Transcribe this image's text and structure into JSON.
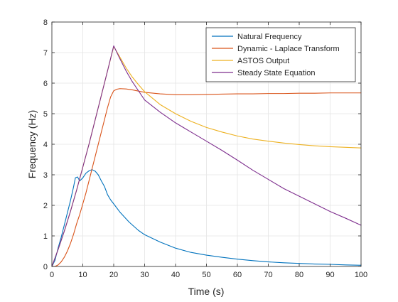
{
  "chart_data": {
    "type": "line",
    "xlabel": "Time (s)",
    "ylabel": "Frequency (Hz)",
    "xlim": [
      0,
      100
    ],
    "ylim": [
      0,
      8
    ],
    "xticks": [
      "0",
      "10",
      "20",
      "30",
      "40",
      "50",
      "60",
      "70",
      "80",
      "90",
      "100"
    ],
    "yticks": [
      "0",
      "1",
      "2",
      "3",
      "4",
      "5",
      "6",
      "7",
      "8"
    ],
    "grid": true,
    "legend_position": "top-right",
    "series": [
      {
        "name": "Natural Frequency",
        "color": "#0072BD",
        "points": [
          [
            0,
            0
          ],
          [
            1,
            0.2
          ],
          [
            2,
            0.6
          ],
          [
            3,
            0.95
          ],
          [
            4,
            1.35
          ],
          [
            5,
            1.75
          ],
          [
            6,
            2.15
          ],
          [
            7,
            2.6
          ],
          [
            7.6,
            2.9
          ],
          [
            8.3,
            2.93
          ],
          [
            9,
            2.8
          ],
          [
            10,
            2.9
          ],
          [
            11,
            3.05
          ],
          [
            12,
            3.13
          ],
          [
            13,
            3.17
          ],
          [
            14,
            3.12
          ],
          [
            15,
            3.0
          ],
          [
            16,
            2.8
          ],
          [
            17,
            2.62
          ],
          [
            18,
            2.35
          ],
          [
            19,
            2.18
          ],
          [
            20,
            2.05
          ],
          [
            22,
            1.78
          ],
          [
            25,
            1.45
          ],
          [
            28,
            1.18
          ],
          [
            30,
            1.04
          ],
          [
            35,
            0.8
          ],
          [
            40,
            0.6
          ],
          [
            45,
            0.46
          ],
          [
            50,
            0.37
          ],
          [
            55,
            0.3
          ],
          [
            60,
            0.24
          ],
          [
            65,
            0.19
          ],
          [
            70,
            0.15
          ],
          [
            75,
            0.12
          ],
          [
            80,
            0.1
          ],
          [
            85,
            0.08
          ],
          [
            90,
            0.07
          ],
          [
            95,
            0.05
          ],
          [
            100,
            0.04
          ]
        ]
      },
      {
        "name": "Dynamic - Laplace Transform",
        "color": "#D95319",
        "points": [
          [
            0,
            0
          ],
          [
            1,
            0.0
          ],
          [
            2,
            0.05
          ],
          [
            3,
            0.15
          ],
          [
            4,
            0.3
          ],
          [
            5,
            0.5
          ],
          [
            6,
            0.75
          ],
          [
            7,
            1.05
          ],
          [
            8,
            1.4
          ],
          [
            9,
            1.7
          ],
          [
            10,
            2.05
          ],
          [
            11,
            2.4
          ],
          [
            12,
            2.8
          ],
          [
            13,
            3.2
          ],
          [
            14,
            3.6
          ],
          [
            15,
            4.0
          ],
          [
            16,
            4.4
          ],
          [
            17,
            4.8
          ],
          [
            18,
            5.2
          ],
          [
            19,
            5.55
          ],
          [
            20,
            5.75
          ],
          [
            21,
            5.8
          ],
          [
            22,
            5.82
          ],
          [
            24,
            5.81
          ],
          [
            26,
            5.78
          ],
          [
            28,
            5.74
          ],
          [
            30,
            5.7
          ],
          [
            35,
            5.65
          ],
          [
            40,
            5.62
          ],
          [
            45,
            5.62
          ],
          [
            50,
            5.63
          ],
          [
            55,
            5.64
          ],
          [
            60,
            5.65
          ],
          [
            65,
            5.65
          ],
          [
            70,
            5.66
          ],
          [
            75,
            5.66
          ],
          [
            80,
            5.67
          ],
          [
            85,
            5.67
          ],
          [
            90,
            5.68
          ],
          [
            95,
            5.68
          ],
          [
            100,
            5.68
          ]
        ]
      },
      {
        "name": "ASTOS Output",
        "color": "#EDB120",
        "points": [
          [
            0,
            0
          ],
          [
            2,
            0.55
          ],
          [
            4,
            1.15
          ],
          [
            6,
            1.8
          ],
          [
            8,
            2.5
          ],
          [
            10,
            3.25
          ],
          [
            12,
            4.0
          ],
          [
            14,
            4.8
          ],
          [
            16,
            5.6
          ],
          [
            18,
            6.4
          ],
          [
            20,
            7.2
          ],
          [
            22,
            6.85
          ],
          [
            24,
            6.5
          ],
          [
            26,
            6.2
          ],
          [
            28,
            5.95
          ],
          [
            30,
            5.72
          ],
          [
            35,
            5.3
          ],
          [
            40,
            5.0
          ],
          [
            45,
            4.75
          ],
          [
            50,
            4.55
          ],
          [
            55,
            4.4
          ],
          [
            60,
            4.27
          ],
          [
            65,
            4.17
          ],
          [
            70,
            4.1
          ],
          [
            75,
            4.04
          ],
          [
            80,
            3.99
          ],
          [
            85,
            3.95
          ],
          [
            90,
            3.92
          ],
          [
            95,
            3.9
          ],
          [
            100,
            3.88
          ]
        ]
      },
      {
        "name": "Steady State Equation",
        "color": "#7E2F8E",
        "points": [
          [
            0,
            0
          ],
          [
            2,
            0.55
          ],
          [
            4,
            1.15
          ],
          [
            6,
            1.8
          ],
          [
            8,
            2.5
          ],
          [
            10,
            3.25
          ],
          [
            12,
            4.0
          ],
          [
            14,
            4.8
          ],
          [
            16,
            5.6
          ],
          [
            18,
            6.4
          ],
          [
            20,
            7.22
          ],
          [
            22,
            6.8
          ],
          [
            24,
            6.4
          ],
          [
            26,
            6.05
          ],
          [
            28,
            5.75
          ],
          [
            30,
            5.45
          ],
          [
            35,
            5.05
          ],
          [
            40,
            4.7
          ],
          [
            45,
            4.4
          ],
          [
            50,
            4.1
          ],
          [
            55,
            3.8
          ],
          [
            60,
            3.48
          ],
          [
            65,
            3.15
          ],
          [
            70,
            2.85
          ],
          [
            75,
            2.55
          ],
          [
            80,
            2.3
          ],
          [
            85,
            2.05
          ],
          [
            90,
            1.8
          ],
          [
            95,
            1.58
          ],
          [
            100,
            1.35
          ]
        ]
      }
    ]
  }
}
